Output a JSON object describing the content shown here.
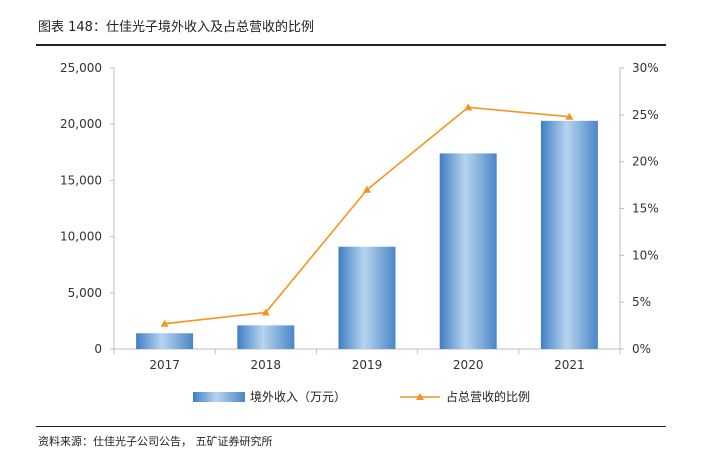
{
  "title": "图表 148：仕佳光子境外收入及占总营收的比例",
  "source": "资料来源：仕佳光子公司公告，  五矿证券研究所",
  "chart_data": {
    "type": "bar",
    "categories": [
      "2017",
      "2018",
      "2019",
      "2020",
      "2021"
    ],
    "series": [
      {
        "name": "境外收入（万元）",
        "type": "bar",
        "axis": "left",
        "color": "#5b9bd5",
        "values": [
          1400,
          2100,
          9100,
          17400,
          20300
        ]
      },
      {
        "name": "占总营收的比例",
        "type": "line",
        "axis": "right",
        "color": "#f7941d",
        "values": [
          2.7,
          3.9,
          17.0,
          25.8,
          24.8
        ]
      }
    ],
    "y_left": {
      "min": 0,
      "max": 25000,
      "step": 5000,
      "ticks": [
        "0",
        "5,000",
        "10,000",
        "15,000",
        "20,000",
        "25,000"
      ]
    },
    "y_right": {
      "min": 0,
      "max": 30,
      "step": 5,
      "ticks": [
        "0%",
        "5%",
        "10%",
        "15%",
        "20%",
        "25%",
        "30%"
      ]
    },
    "legend": [
      "境外收入（万元）",
      "占总营收的比例"
    ],
    "legend_position": "bottom"
  }
}
